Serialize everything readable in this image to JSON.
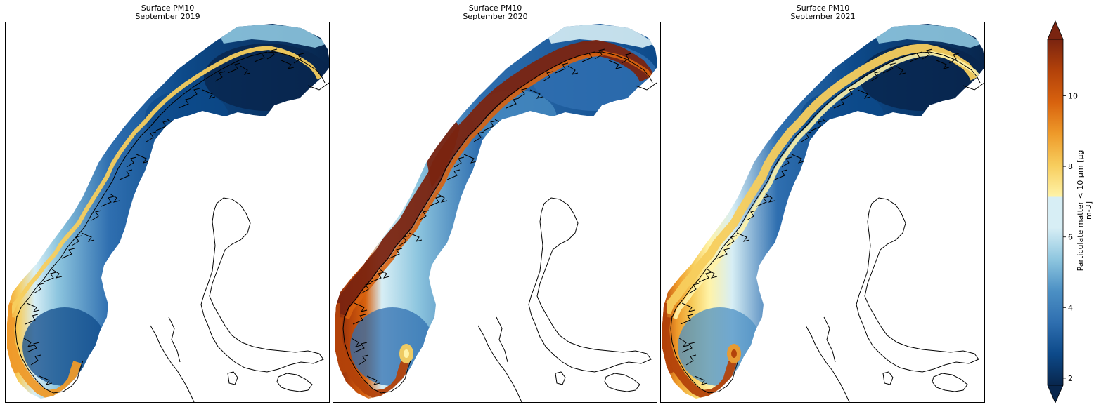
{
  "panels": [
    {
      "title_line1": "Surface PM10",
      "title_line2": "September 2019",
      "variant": "2019"
    },
    {
      "title_line1": "Surface PM10",
      "title_line2": "September 2020",
      "variant": "2020"
    },
    {
      "title_line1": "Surface PM10",
      "title_line2": "September 2021",
      "variant": "2021"
    }
  ],
  "colorbar": {
    "label_line1": "Particulate matter < 10 µm [µg",
    "label_line2": "m-3]",
    "ticks": [
      "2",
      "4",
      "6",
      "8",
      "10"
    ],
    "tick_values": [
      2,
      4,
      6,
      8,
      10
    ],
    "min": 1.8,
    "max": 11.6,
    "extend": "both",
    "colors": [
      "#08264d",
      "#0d4a8a",
      "#2f6fb0",
      "#4c90c4",
      "#8ec6df",
      "#d7eef5",
      "#fff3a8",
      "#f7cd5d",
      "#ee9a2a",
      "#d8620e",
      "#b3420a",
      "#7a2410"
    ]
  }
}
